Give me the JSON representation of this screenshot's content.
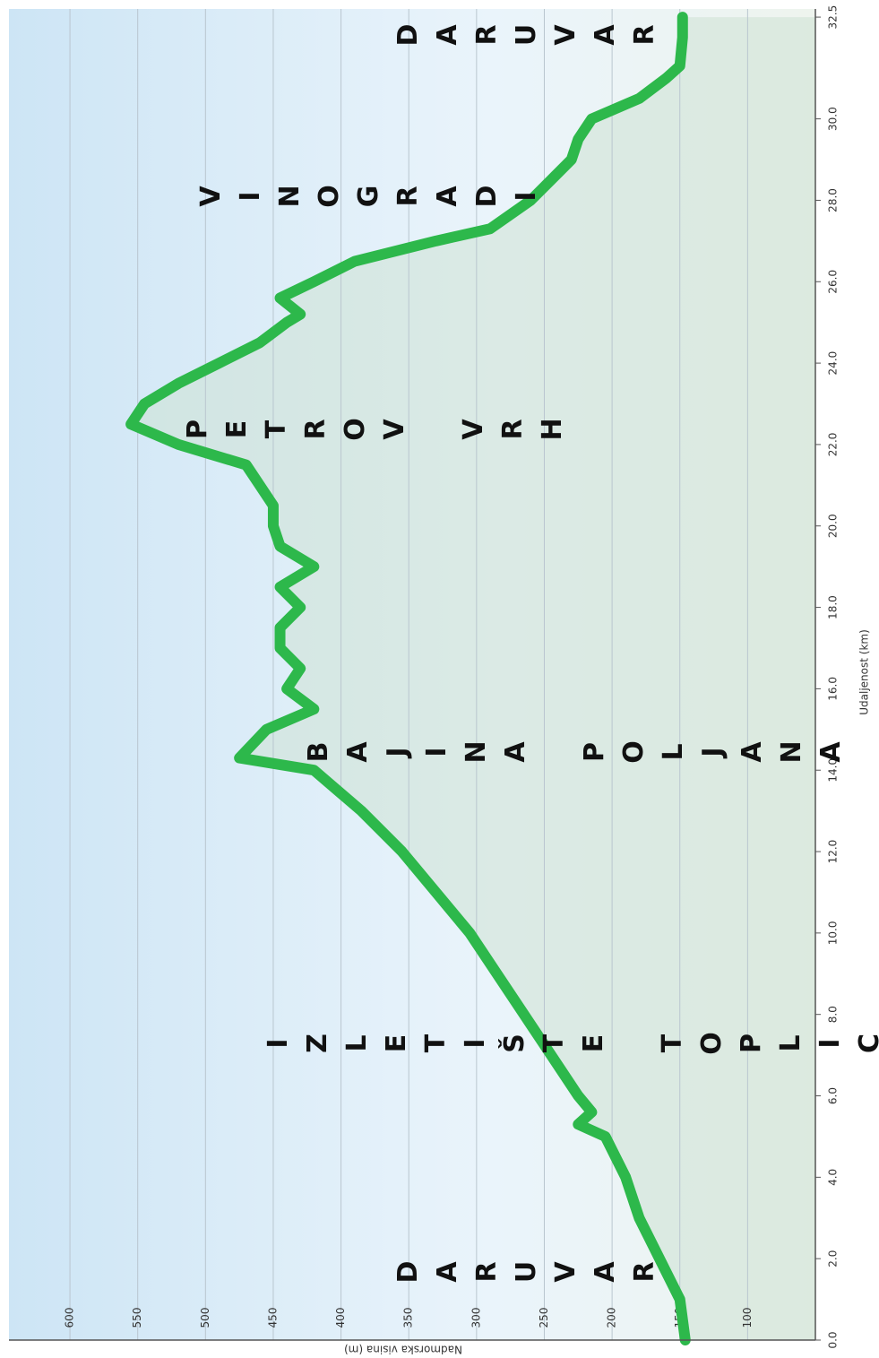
{
  "chart_data": {
    "type": "area",
    "x_label": "Udaljenost (km)",
    "y_label": "Nadmorska visina (m)",
    "x": [
      0,
      1,
      2,
      3,
      4,
      5,
      5.3,
      5.6,
      6,
      7,
      8,
      9,
      10,
      11,
      12,
      13,
      14,
      14.3,
      15,
      15.5,
      16,
      16.5,
      17,
      17.5,
      18,
      18.5,
      19,
      19.5,
      20,
      20.5,
      21,
      21.5,
      22,
      22.5,
      23,
      23.5,
      24,
      24.5,
      25,
      25.2,
      25.6,
      26,
      26.5,
      27,
      27.3,
      28,
      28.5,
      29,
      29.5,
      30,
      30.5,
      31,
      31.3,
      32,
      32.5
    ],
    "values": [
      146,
      150,
      165,
      180,
      190,
      205,
      225,
      215,
      225,
      245,
      265,
      285,
      305,
      330,
      355,
      385,
      420,
      475,
      455,
      420,
      440,
      430,
      445,
      445,
      430,
      445,
      420,
      445,
      450,
      450,
      460,
      470,
      520,
      555,
      545,
      520,
      490,
      460,
      440,
      430,
      445,
      420,
      390,
      330,
      290,
      260,
      245,
      230,
      225,
      215,
      180,
      160,
      150,
      148,
      148
    ],
    "color": "#2db84b",
    "xlim": [
      0,
      32.7
    ],
    "ylim": [
      50,
      645
    ],
    "xticks": [
      {
        "value": 0,
        "label": "0.0"
      },
      {
        "value": 2,
        "label": "2.0"
      },
      {
        "value": 4,
        "label": "4.0"
      },
      {
        "value": 6,
        "label": "6.0"
      },
      {
        "value": 8,
        "label": "8.0"
      },
      {
        "value": 10,
        "label": "10.0"
      },
      {
        "value": 12,
        "label": "12.0"
      },
      {
        "value": 14,
        "label": "14.0"
      },
      {
        "value": 16,
        "label": "16.0"
      },
      {
        "value": 18,
        "label": "18.0"
      },
      {
        "value": 20,
        "label": "20.0"
      },
      {
        "value": 22,
        "label": "22.0"
      },
      {
        "value": 24,
        "label": "24.0"
      },
      {
        "value": 26,
        "label": "26.0"
      },
      {
        "value": 28,
        "label": "28.0"
      },
      {
        "value": 30,
        "label": "30.0"
      },
      {
        "value": 32.5,
        "label": "32.5"
      }
    ],
    "yticks": [
      100,
      150,
      200,
      250,
      300,
      350,
      400,
      450,
      500,
      550,
      600
    ],
    "grid": true,
    "annotations": [
      "DARUVAR",
      "IZLETIŠTE TOPLICA",
      "BAJINA POLJANA",
      "PETROV VRH",
      "VINOGRADI",
      "DARUVAR"
    ]
  }
}
